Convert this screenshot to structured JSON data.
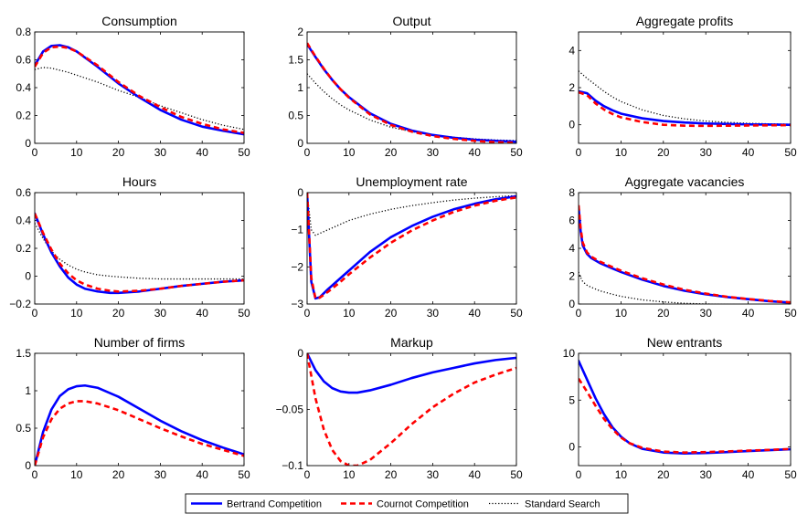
{
  "colors": {
    "bertrand": "#0000ff",
    "cournot": "#ff0000",
    "search": "#000000"
  },
  "legend": {
    "placement": "bottom-center",
    "items": [
      {
        "label": "Bertrand Competition",
        "color": "#0000ff",
        "style": "solid"
      },
      {
        "label": "Cournot Competition",
        "color": "#ff0000",
        "style": "dashed"
      },
      {
        "label": "Standard Search",
        "color": "#000000",
        "style": "dotted"
      }
    ]
  },
  "chart_data": [
    {
      "type": "line",
      "title": "Consumption",
      "xlim": [
        0,
        50
      ],
      "ylim": [
        0,
        0.8
      ],
      "xticks": [
        "0",
        "10",
        "20",
        "30",
        "40",
        "50"
      ],
      "yticks": [
        "0",
        "0.2",
        "0.4",
        "0.6",
        "0.8"
      ],
      "x": [
        0,
        2,
        4,
        6,
        8,
        10,
        15,
        20,
        25,
        30,
        35,
        40,
        45,
        50
      ],
      "series": [
        {
          "name": "Bertrand Competition",
          "values": [
            0.56,
            0.66,
            0.7,
            0.705,
            0.69,
            0.66,
            0.55,
            0.43,
            0.33,
            0.24,
            0.17,
            0.12,
            0.09,
            0.065
          ]
        },
        {
          "name": "Cournot Competition",
          "values": [
            0.55,
            0.65,
            0.69,
            0.695,
            0.685,
            0.66,
            0.56,
            0.44,
            0.34,
            0.26,
            0.19,
            0.14,
            0.1,
            0.075
          ]
        },
        {
          "name": "Standard Search",
          "values": [
            0.53,
            0.545,
            0.54,
            0.525,
            0.51,
            0.49,
            0.44,
            0.38,
            0.33,
            0.27,
            0.22,
            0.17,
            0.13,
            0.1
          ]
        }
      ]
    },
    {
      "type": "line",
      "title": "Output",
      "xlim": [
        0,
        50
      ],
      "ylim": [
        0,
        2
      ],
      "xticks": [
        "0",
        "10",
        "20",
        "30",
        "40",
        "50"
      ],
      "yticks": [
        "0",
        "0.5",
        "1",
        "1.5",
        "2"
      ],
      "x": [
        0,
        2,
        4,
        6,
        8,
        10,
        15,
        20,
        25,
        30,
        35,
        40,
        45,
        50
      ],
      "series": [
        {
          "name": "Bertrand Competition",
          "values": [
            1.78,
            1.55,
            1.33,
            1.14,
            0.97,
            0.83,
            0.54,
            0.35,
            0.23,
            0.15,
            0.1,
            0.065,
            0.045,
            0.03
          ]
        },
        {
          "name": "Cournot Competition",
          "values": [
            1.8,
            1.56,
            1.34,
            1.14,
            0.97,
            0.82,
            0.52,
            0.33,
            0.21,
            0.13,
            0.08,
            0.045,
            0.02,
            0.01
          ]
        },
        {
          "name": "Standard Search",
          "values": [
            1.25,
            1.08,
            0.93,
            0.8,
            0.69,
            0.6,
            0.42,
            0.29,
            0.21,
            0.15,
            0.11,
            0.08,
            0.06,
            0.05
          ]
        }
      ]
    },
    {
      "type": "line",
      "title": "Aggregate profits",
      "xlim": [
        0,
        50
      ],
      "ylim": [
        -1,
        5
      ],
      "xticks": [
        "0",
        "10",
        "20",
        "30",
        "40",
        "50"
      ],
      "yticks": [
        "0",
        "2",
        "4"
      ],
      "x": [
        0,
        2,
        4,
        6,
        8,
        10,
        15,
        20,
        25,
        30,
        35,
        40,
        45,
        50
      ],
      "series": [
        {
          "name": "Bertrand Competition",
          "values": [
            1.8,
            1.7,
            1.3,
            1.0,
            0.78,
            0.6,
            0.35,
            0.2,
            0.12,
            0.07,
            0.04,
            0.02,
            0.01,
            0.0
          ]
        },
        {
          "name": "Cournot Competition",
          "values": [
            1.75,
            1.6,
            1.15,
            0.82,
            0.58,
            0.4,
            0.15,
            0.0,
            -0.05,
            -0.06,
            -0.05,
            -0.04,
            -0.03,
            -0.02
          ]
        },
        {
          "name": "Standard Search",
          "values": [
            2.9,
            2.5,
            2.15,
            1.8,
            1.5,
            1.25,
            0.8,
            0.5,
            0.32,
            0.2,
            0.13,
            0.08,
            0.05,
            0.03
          ]
        }
      ]
    },
    {
      "type": "line",
      "title": "Hours",
      "xlim": [
        0,
        50
      ],
      "ylim": [
        -0.2,
        0.6
      ],
      "xticks": [
        "0",
        "10",
        "20",
        "30",
        "40",
        "50"
      ],
      "yticks": [
        "−0.2",
        "0",
        "0.2",
        "0.4",
        "0.6"
      ],
      "x": [
        0,
        2,
        4,
        6,
        8,
        10,
        12,
        15,
        18,
        20,
        25,
        30,
        35,
        40,
        45,
        50
      ],
      "series": [
        {
          "name": "Bertrand Competition",
          "values": [
            0.45,
            0.3,
            0.17,
            0.07,
            -0.01,
            -0.06,
            -0.09,
            -0.11,
            -0.12,
            -0.12,
            -0.11,
            -0.09,
            -0.07,
            -0.055,
            -0.04,
            -0.03
          ]
        },
        {
          "name": "Cournot Competition",
          "values": [
            0.45,
            0.31,
            0.19,
            0.09,
            0.02,
            -0.03,
            -0.06,
            -0.09,
            -0.105,
            -0.11,
            -0.105,
            -0.09,
            -0.07,
            -0.055,
            -0.04,
            -0.03
          ]
        },
        {
          "name": "Standard Search",
          "values": [
            0.38,
            0.27,
            0.18,
            0.12,
            0.08,
            0.05,
            0.03,
            0.01,
            0.0,
            -0.005,
            -0.015,
            -0.02,
            -0.02,
            -0.02,
            -0.02,
            -0.02
          ]
        }
      ]
    },
    {
      "type": "line",
      "title": "Unemployment rate",
      "xlim": [
        0,
        50
      ],
      "ylim": [
        -3,
        0
      ],
      "xticks": [
        "0",
        "10",
        "20",
        "30",
        "40",
        "50"
      ],
      "yticks": [
        "−3",
        "−2",
        "−1",
        "0"
      ],
      "x": [
        0,
        1,
        2,
        3,
        5,
        8,
        10,
        15,
        20,
        25,
        30,
        35,
        40,
        45,
        50
      ],
      "series": [
        {
          "name": "Bertrand Competition",
          "values": [
            0,
            -2.4,
            -2.85,
            -2.82,
            -2.6,
            -2.3,
            -2.1,
            -1.6,
            -1.2,
            -0.9,
            -0.65,
            -0.45,
            -0.3,
            -0.18,
            -0.1
          ]
        },
        {
          "name": "Cournot Competition",
          "values": [
            0,
            -2.3,
            -2.85,
            -2.83,
            -2.67,
            -2.4,
            -2.2,
            -1.75,
            -1.35,
            -1.02,
            -0.75,
            -0.52,
            -0.35,
            -0.22,
            -0.13
          ]
        },
        {
          "name": "Standard Search",
          "values": [
            0,
            -1.0,
            -1.15,
            -1.1,
            -1.0,
            -0.85,
            -0.75,
            -0.58,
            -0.45,
            -0.35,
            -0.27,
            -0.2,
            -0.15,
            -0.11,
            -0.08
          ]
        }
      ]
    },
    {
      "type": "line",
      "title": "Aggregate vacancies",
      "xlim": [
        0,
        50
      ],
      "ylim": [
        0,
        8
      ],
      "xticks": [
        "0",
        "10",
        "20",
        "30",
        "40",
        "50"
      ],
      "yticks": [
        "0",
        "2",
        "4",
        "6",
        "8"
      ],
      "x": [
        0,
        0.5,
        1,
        2,
        3,
        5,
        8,
        10,
        15,
        20,
        25,
        30,
        35,
        40,
        45,
        50
      ],
      "series": [
        {
          "name": "Bertrand Competition",
          "values": [
            7.0,
            5.2,
            4.2,
            3.6,
            3.3,
            2.95,
            2.55,
            2.3,
            1.75,
            1.3,
            0.95,
            0.7,
            0.5,
            0.35,
            0.2,
            0.1
          ]
        },
        {
          "name": "Cournot Competition",
          "values": [
            7.1,
            5.4,
            4.4,
            3.7,
            3.4,
            3.05,
            2.65,
            2.4,
            1.85,
            1.4,
            1.02,
            0.75,
            0.52,
            0.36,
            0.22,
            0.12
          ]
        },
        {
          "name": "Standard Search",
          "values": [
            2.3,
            1.9,
            1.6,
            1.35,
            1.2,
            0.95,
            0.7,
            0.55,
            0.3,
            0.15,
            0.05,
            0.0,
            -0.03,
            -0.05,
            -0.05,
            -0.05
          ]
        }
      ]
    },
    {
      "type": "line",
      "title": "Number of firms",
      "xlim": [
        0,
        50
      ],
      "ylim": [
        0,
        1.5
      ],
      "xticks": [
        "0",
        "10",
        "20",
        "30",
        "40",
        "50"
      ],
      "yticks": [
        "0",
        "0.5",
        "1",
        "1.5"
      ],
      "x": [
        0,
        2,
        4,
        6,
        8,
        10,
        12,
        15,
        20,
        25,
        30,
        35,
        40,
        45,
        50
      ],
      "series": [
        {
          "name": "Bertrand Competition",
          "values": [
            0,
            0.45,
            0.75,
            0.93,
            1.02,
            1.06,
            1.07,
            1.04,
            0.92,
            0.76,
            0.6,
            0.46,
            0.34,
            0.24,
            0.15
          ]
        },
        {
          "name": "Cournot Competition",
          "values": [
            0,
            0.38,
            0.62,
            0.76,
            0.83,
            0.86,
            0.86,
            0.83,
            0.74,
            0.62,
            0.5,
            0.39,
            0.29,
            0.21,
            0.13
          ]
        }
      ]
    },
    {
      "type": "line",
      "title": "Markup",
      "xlim": [
        0,
        50
      ],
      "ylim": [
        -0.1,
        0
      ],
      "xticks": [
        "0",
        "10",
        "20",
        "30",
        "40",
        "50"
      ],
      "yticks": [
        "−0.1",
        "−0.05",
        "0"
      ],
      "x": [
        0,
        2,
        4,
        6,
        8,
        10,
        12,
        15,
        20,
        25,
        30,
        35,
        40,
        45,
        50
      ],
      "series": [
        {
          "name": "Bertrand Competition",
          "values": [
            0,
            -0.015,
            -0.025,
            -0.031,
            -0.034,
            -0.035,
            -0.035,
            -0.033,
            -0.028,
            -0.022,
            -0.017,
            -0.013,
            -0.009,
            -0.006,
            -0.004
          ]
        },
        {
          "name": "Cournot Competition",
          "values": [
            0,
            -0.04,
            -0.068,
            -0.086,
            -0.096,
            -0.1,
            -0.1,
            -0.095,
            -0.08,
            -0.063,
            -0.048,
            -0.036,
            -0.026,
            -0.019,
            -0.013
          ]
        }
      ]
    },
    {
      "type": "line",
      "title": "New entrants",
      "xlim": [
        0,
        50
      ],
      "ylim": [
        -2,
        10
      ],
      "xticks": [
        "0",
        "10",
        "20",
        "30",
        "40",
        "50"
      ],
      "yticks": [
        "0",
        "5",
        "10"
      ],
      "x": [
        0,
        2,
        4,
        6,
        8,
        10,
        12,
        15,
        20,
        25,
        30,
        35,
        40,
        45,
        50
      ],
      "series": [
        {
          "name": "Bertrand Competition",
          "values": [
            9.2,
            7.2,
            5.2,
            3.5,
            2.1,
            1.1,
            0.4,
            -0.2,
            -0.6,
            -0.7,
            -0.65,
            -0.55,
            -0.45,
            -0.35,
            -0.25
          ]
        },
        {
          "name": "Cournot Competition",
          "values": [
            7.3,
            5.9,
            4.4,
            3.0,
            1.9,
            1.0,
            0.4,
            -0.1,
            -0.5,
            -0.6,
            -0.55,
            -0.48,
            -0.4,
            -0.32,
            -0.22
          ]
        }
      ]
    }
  ]
}
